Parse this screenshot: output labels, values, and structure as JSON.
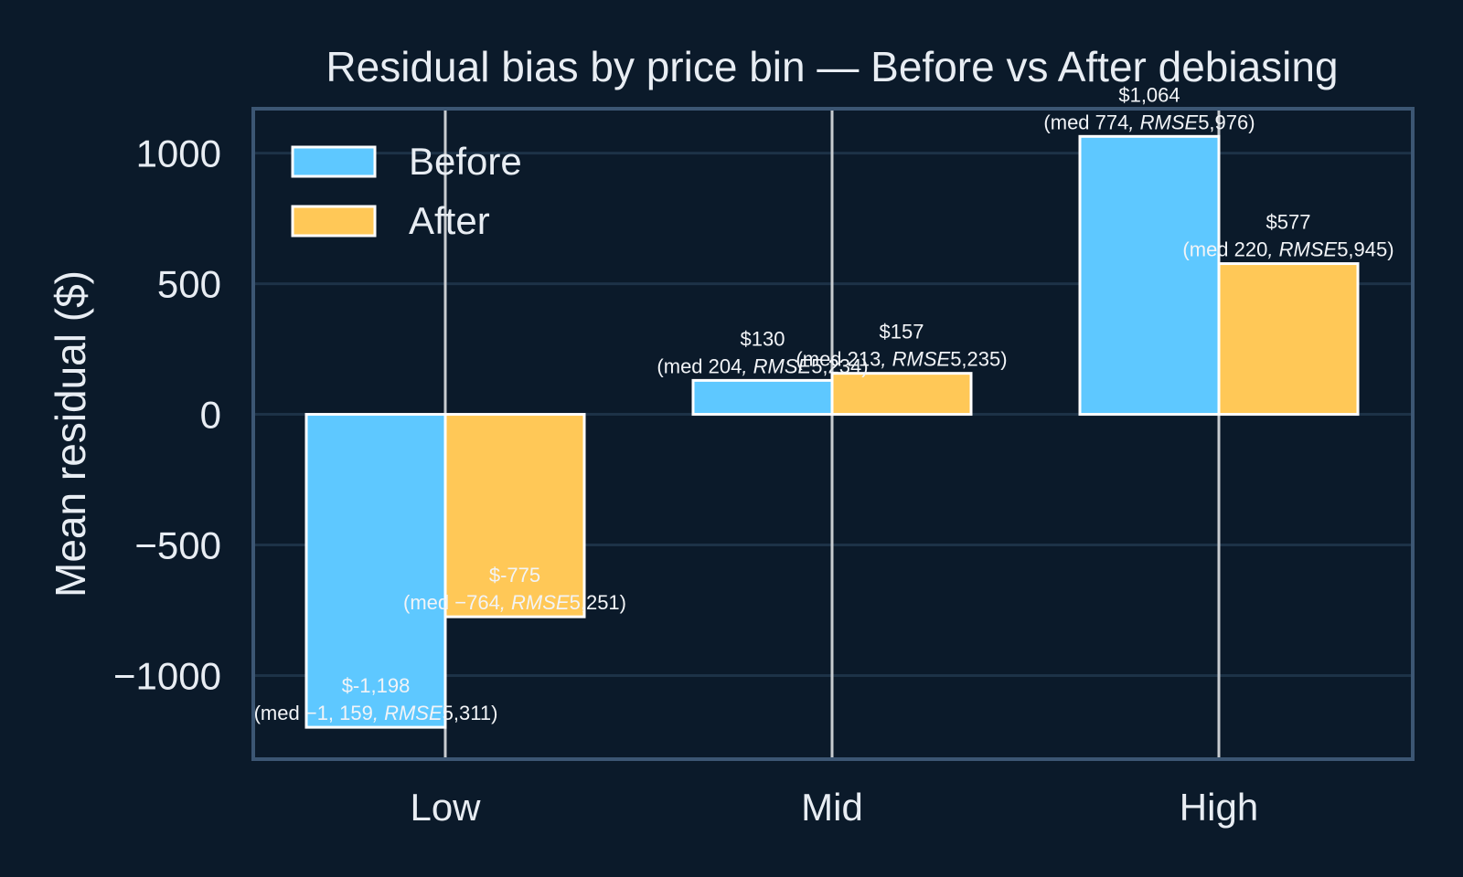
{
  "chart_data": {
    "type": "bar",
    "title": "Residual bias by price bin — Before vs After debiasing",
    "xlabel": "",
    "ylabel": "Mean residual ($)",
    "categories": [
      "Low",
      "Mid",
      "High"
    ],
    "ylim": [
      -1320,
      1170
    ],
    "yticks": [
      1000,
      500,
      0,
      -500,
      -1000
    ],
    "ytick_labels": [
      "1000",
      "500",
      "0",
      "−500",
      "−1000"
    ],
    "grid": true,
    "legend": "top-left",
    "series": [
      {
        "name": "Before",
        "color": "#5ec8ff",
        "values": [
          -1198,
          130,
          1064
        ],
        "labels": [
          "$-1,198",
          "$130",
          "$1,064"
        ],
        "medians": [
          "−1, 159",
          "204",
          "774"
        ],
        "rmse": [
          "5,311",
          "5,234",
          "5,976"
        ]
      },
      {
        "name": "After",
        "color": "#ffc857",
        "values": [
          -775,
          157,
          577
        ],
        "labels": [
          "$-775",
          "$157",
          "$577"
        ],
        "medians": [
          "−764",
          "213",
          "220"
        ],
        "rmse": [
          "5,251",
          "5,235",
          "5,945"
        ]
      }
    ],
    "annotation_parts": {
      "med_prefix": "(med ",
      "rmse_label": ", RMSE",
      "suffix": ")"
    }
  },
  "colors": {
    "background": "#0b1a2a",
    "text": "#e8edf3",
    "grid": "#1d3247",
    "frame": "#3c5673",
    "before": "#5ec8ff",
    "after": "#ffc857"
  }
}
